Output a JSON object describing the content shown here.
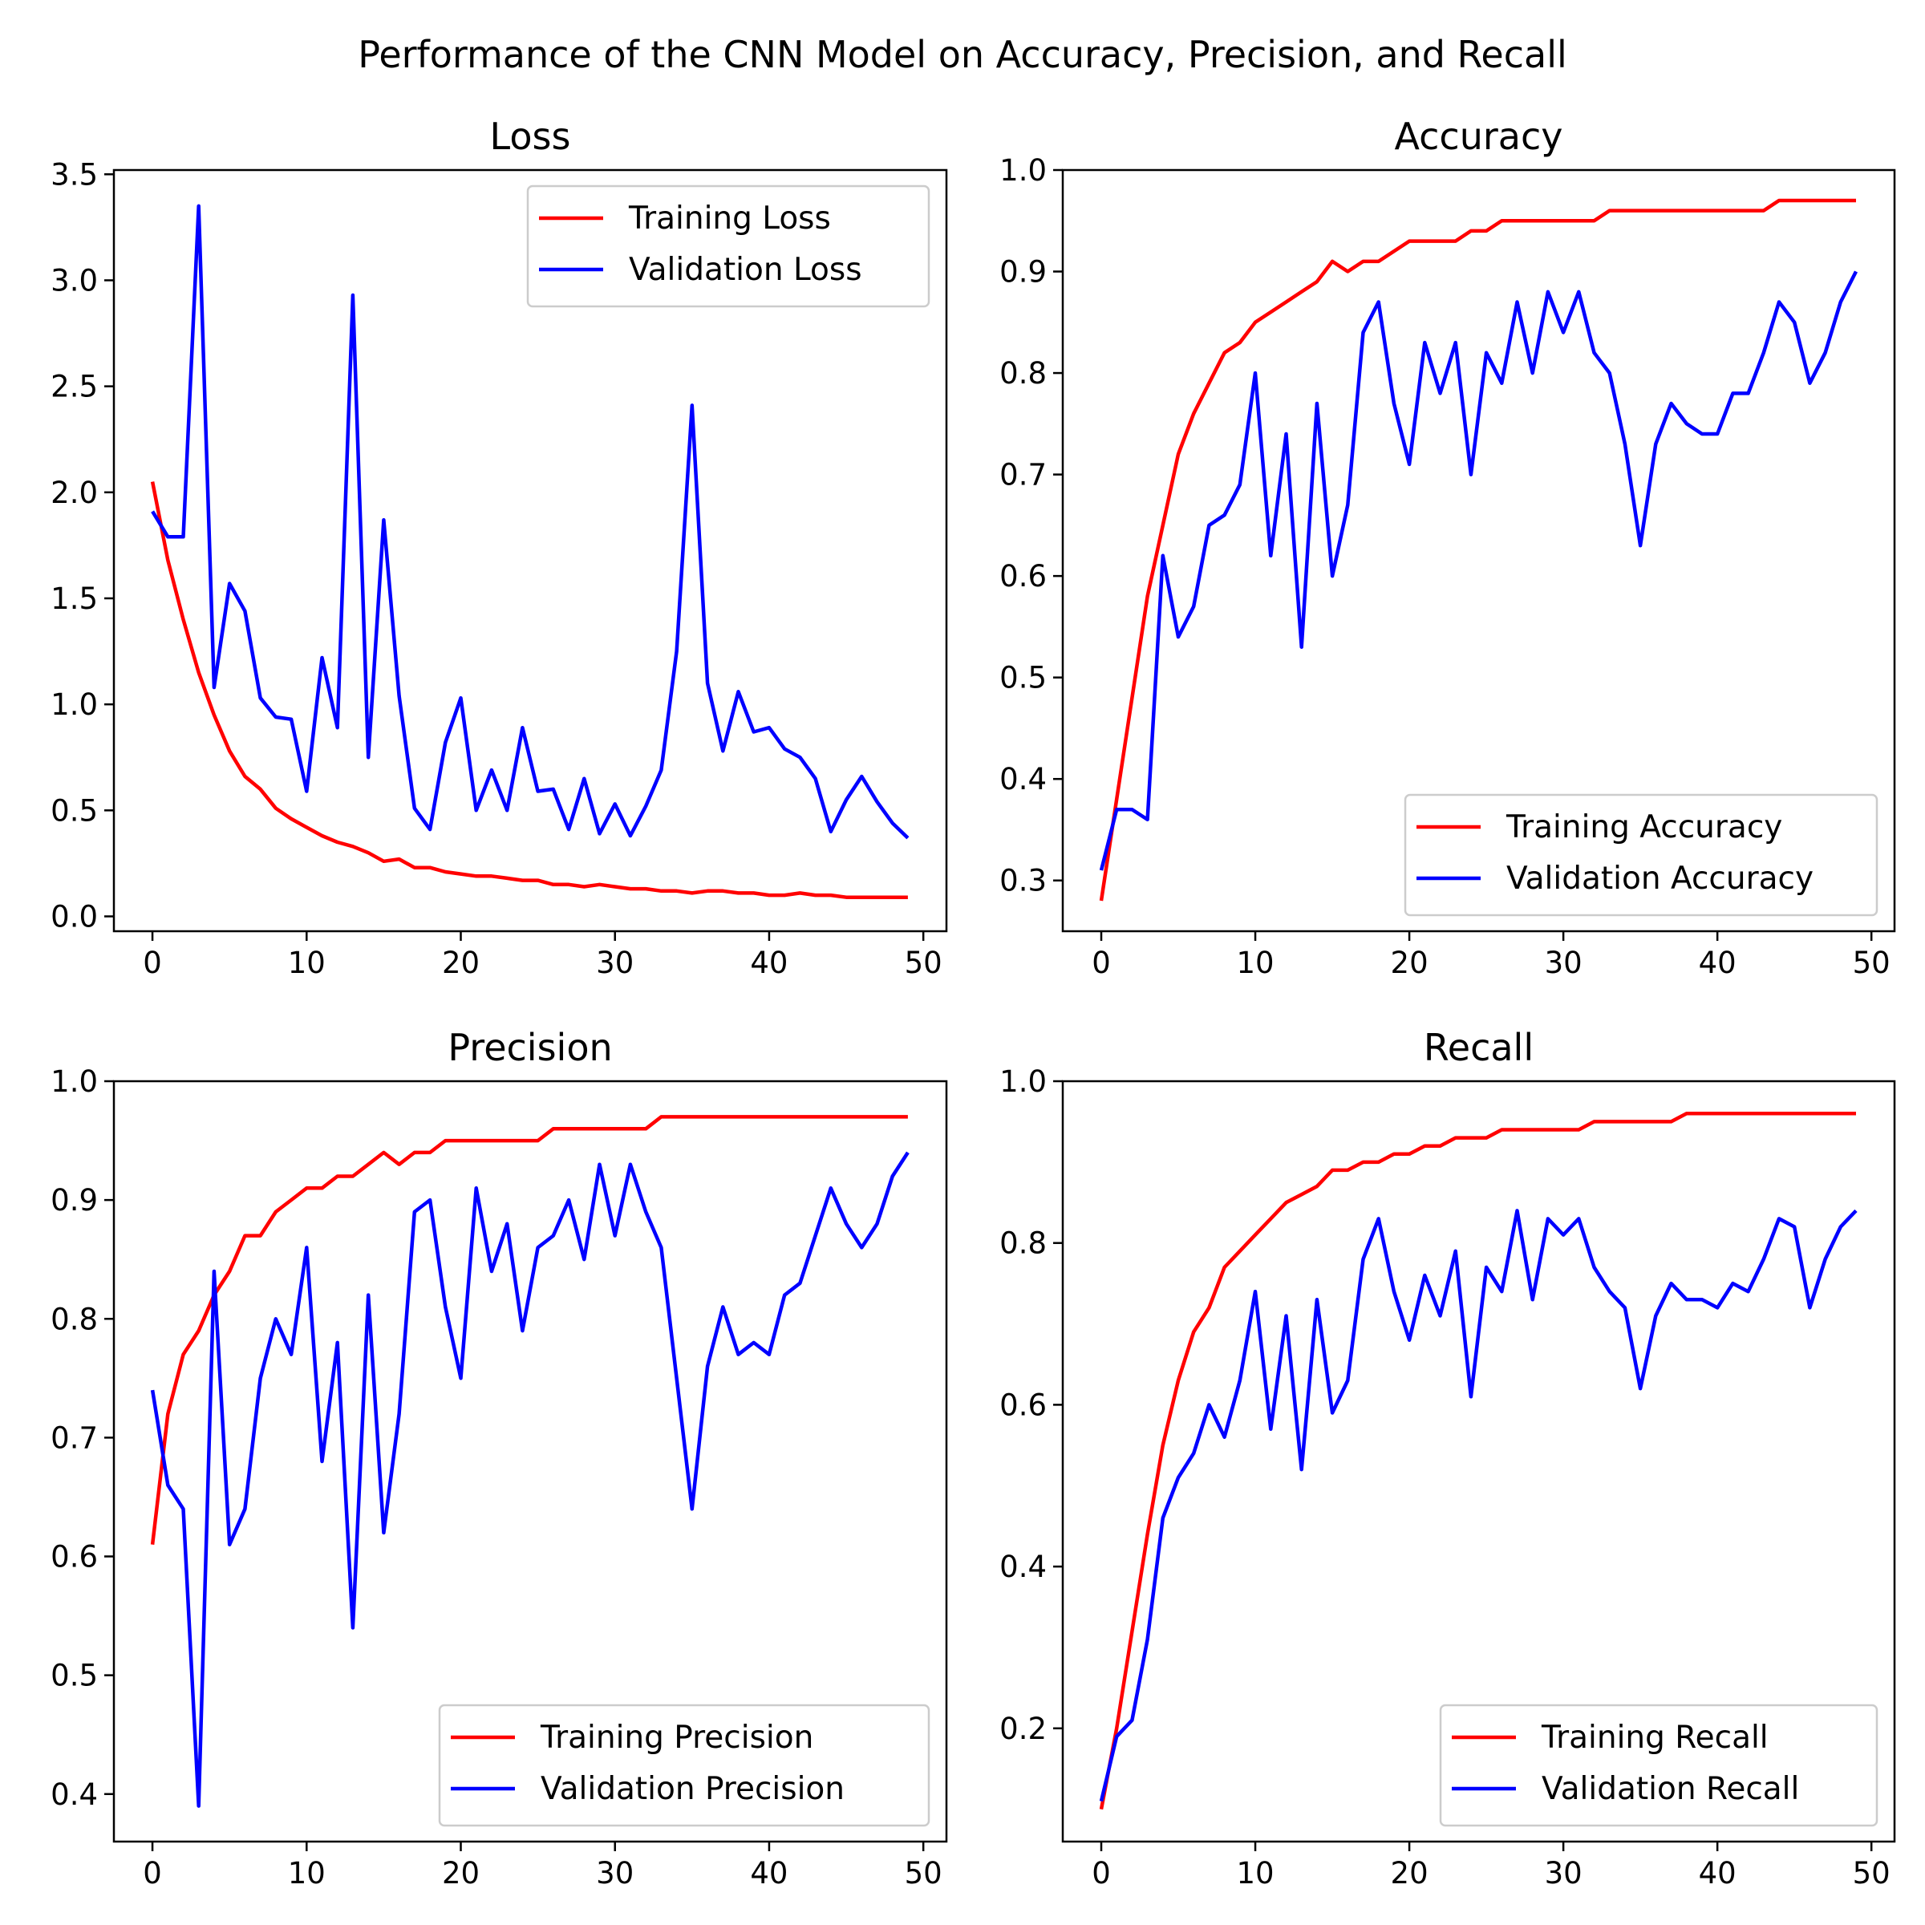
{
  "suptitle": "Performance of the CNN Model on Accuracy, Precision, and Recall",
  "colors": {
    "training": "#ff0000",
    "validation": "#0000ff"
  },
  "chart_data": [
    {
      "type": "line",
      "title": "Loss",
      "xlim": [
        -2.5,
        51.5
      ],
      "ylim": [
        -0.07,
        3.52
      ],
      "xticks": [
        0,
        10,
        20,
        30,
        40,
        50
      ],
      "xtick_labels": [
        "0",
        "10",
        "20",
        "30",
        "40",
        "50"
      ],
      "yticks": [
        0.0,
        0.5,
        1.0,
        1.5,
        2.0,
        2.5,
        3.0,
        3.5
      ],
      "ytick_labels": [
        "0.0",
        "0.5",
        "1.0",
        "1.5",
        "2.0",
        "2.5",
        "3.0",
        "3.5"
      ],
      "legend_loc": "upper right",
      "series": [
        {
          "name": "Training Loss",
          "color": "#ff0000",
          "x": [
            0,
            1,
            2,
            3,
            4,
            5,
            6,
            7,
            8,
            9,
            10,
            11,
            12,
            13,
            14,
            15,
            16,
            17,
            18,
            19,
            20,
            21,
            22,
            23,
            24,
            25,
            26,
            27,
            28,
            29,
            30,
            31,
            32,
            33,
            34,
            35,
            36,
            37,
            38,
            39,
            40,
            41,
            42,
            43,
            44,
            45,
            46,
            47,
            48,
            49
          ],
          "values": [
            2.05,
            1.68,
            1.4,
            1.15,
            0.95,
            0.78,
            0.66,
            0.6,
            0.51,
            0.46,
            0.42,
            0.38,
            0.35,
            0.33,
            0.3,
            0.26,
            0.27,
            0.23,
            0.23,
            0.21,
            0.2,
            0.19,
            0.19,
            0.18,
            0.17,
            0.17,
            0.15,
            0.15,
            0.14,
            0.15,
            0.14,
            0.13,
            0.13,
            0.12,
            0.12,
            0.11,
            0.12,
            0.12,
            0.11,
            0.11,
            0.1,
            0.1,
            0.11,
            0.1,
            0.1,
            0.09,
            0.09,
            0.09,
            0.09,
            0.09
          ]
        },
        {
          "name": "Validation Loss",
          "color": "#0000ff",
          "x": [
            0,
            1,
            2,
            3,
            4,
            5,
            6,
            7,
            8,
            9,
            10,
            11,
            12,
            13,
            14,
            15,
            16,
            17,
            18,
            19,
            20,
            21,
            22,
            23,
            24,
            25,
            26,
            27,
            28,
            29,
            30,
            31,
            32,
            33,
            34,
            35,
            36,
            37,
            38,
            39,
            40,
            41,
            42,
            43,
            44,
            45,
            46,
            47,
            48,
            49
          ],
          "values": [
            1.91,
            1.79,
            1.79,
            3.35,
            1.08,
            1.57,
            1.44,
            1.03,
            0.94,
            0.93,
            0.59,
            1.22,
            0.89,
            2.93,
            0.75,
            1.87,
            1.04,
            0.51,
            0.41,
            0.82,
            1.03,
            0.5,
            0.69,
            0.5,
            0.89,
            0.59,
            0.6,
            0.41,
            0.65,
            0.39,
            0.53,
            0.38,
            0.52,
            0.69,
            1.25,
            2.41,
            1.1,
            0.78,
            1.06,
            0.87,
            0.89,
            0.79,
            0.75,
            0.65,
            0.4,
            0.55,
            0.66,
            0.54,
            0.44,
            0.37
          ]
        }
      ]
    },
    {
      "type": "line",
      "title": "Accuracy",
      "xlim": [
        -2.5,
        51.5
      ],
      "ylim": [
        0.25,
        1.0
      ],
      "xticks": [
        0,
        10,
        20,
        30,
        40,
        50
      ],
      "xtick_labels": [
        "0",
        "10",
        "20",
        "30",
        "40",
        "50"
      ],
      "yticks": [
        0.3,
        0.4,
        0.5,
        0.6,
        0.7,
        0.8,
        0.9,
        1.0
      ],
      "ytick_labels": [
        "0.3",
        "0.4",
        "0.5",
        "0.6",
        "0.7",
        "0.8",
        "0.9",
        "1.0"
      ],
      "legend_loc": "lower right",
      "series": [
        {
          "name": "Training Accuracy",
          "color": "#ff0000",
          "x": [
            0,
            1,
            2,
            3,
            4,
            5,
            6,
            7,
            8,
            9,
            10,
            11,
            12,
            13,
            14,
            15,
            16,
            17,
            18,
            19,
            20,
            21,
            22,
            23,
            24,
            25,
            26,
            27,
            28,
            29,
            30,
            31,
            32,
            33,
            34,
            35,
            36,
            37,
            38,
            39,
            40,
            41,
            42,
            43,
            44,
            45,
            46,
            47,
            48,
            49
          ],
          "values": [
            0.28,
            0.38,
            0.48,
            0.58,
            0.65,
            0.72,
            0.76,
            0.79,
            0.82,
            0.83,
            0.85,
            0.86,
            0.87,
            0.88,
            0.89,
            0.91,
            0.9,
            0.91,
            0.91,
            0.92,
            0.93,
            0.93,
            0.93,
            0.93,
            0.94,
            0.94,
            0.95,
            0.95,
            0.95,
            0.95,
            0.95,
            0.95,
            0.95,
            0.96,
            0.96,
            0.96,
            0.96,
            0.96,
            0.96,
            0.96,
            0.96,
            0.96,
            0.96,
            0.96,
            0.97,
            0.97,
            0.97,
            0.97,
            0.97,
            0.97
          ]
        },
        {
          "name": "Validation Accuracy",
          "color": "#0000ff",
          "x": [
            0,
            1,
            2,
            3,
            4,
            5,
            6,
            7,
            8,
            9,
            10,
            11,
            12,
            13,
            14,
            15,
            16,
            17,
            18,
            19,
            20,
            21,
            22,
            23,
            24,
            25,
            26,
            27,
            28,
            29,
            30,
            31,
            32,
            33,
            34,
            35,
            36,
            37,
            38,
            39,
            40,
            41,
            42,
            43,
            44,
            45,
            46,
            47,
            48,
            49
          ],
          "values": [
            0.31,
            0.37,
            0.37,
            0.36,
            0.62,
            0.54,
            0.57,
            0.65,
            0.66,
            0.69,
            0.8,
            0.62,
            0.74,
            0.53,
            0.77,
            0.6,
            0.67,
            0.84,
            0.87,
            0.77,
            0.71,
            0.83,
            0.78,
            0.83,
            0.7,
            0.82,
            0.79,
            0.87,
            0.8,
            0.88,
            0.84,
            0.88,
            0.82,
            0.8,
            0.73,
            0.63,
            0.73,
            0.77,
            0.75,
            0.74,
            0.74,
            0.78,
            0.78,
            0.82,
            0.87,
            0.85,
            0.79,
            0.82,
            0.87,
            0.9
          ]
        }
      ]
    },
    {
      "type": "line",
      "title": "Precision",
      "xlim": [
        -2.5,
        51.5
      ],
      "ylim": [
        0.36,
        1.0
      ],
      "xticks": [
        0,
        10,
        20,
        30,
        40,
        50
      ],
      "xtick_labels": [
        "0",
        "10",
        "20",
        "30",
        "40",
        "50"
      ],
      "yticks": [
        0.4,
        0.5,
        0.6,
        0.7,
        0.8,
        0.9,
        1.0
      ],
      "ytick_labels": [
        "0.4",
        "0.5",
        "0.6",
        "0.7",
        "0.8",
        "0.9",
        "1.0"
      ],
      "legend_loc": "lower right",
      "series": [
        {
          "name": "Training Precision",
          "color": "#ff0000",
          "x": [
            0,
            1,
            2,
            3,
            4,
            5,
            6,
            7,
            8,
            9,
            10,
            11,
            12,
            13,
            14,
            15,
            16,
            17,
            18,
            19,
            20,
            21,
            22,
            23,
            24,
            25,
            26,
            27,
            28,
            29,
            30,
            31,
            32,
            33,
            34,
            35,
            36,
            37,
            38,
            39,
            40,
            41,
            42,
            43,
            44,
            45,
            46,
            47,
            48,
            49
          ],
          "values": [
            0.61,
            0.72,
            0.77,
            0.79,
            0.82,
            0.84,
            0.87,
            0.87,
            0.89,
            0.9,
            0.91,
            0.91,
            0.92,
            0.92,
            0.93,
            0.94,
            0.93,
            0.94,
            0.94,
            0.95,
            0.95,
            0.95,
            0.95,
            0.95,
            0.95,
            0.95,
            0.96,
            0.96,
            0.96,
            0.96,
            0.96,
            0.96,
            0.96,
            0.97,
            0.97,
            0.97,
            0.97,
            0.97,
            0.97,
            0.97,
            0.97,
            0.97,
            0.97,
            0.97,
            0.97,
            0.97,
            0.97,
            0.97,
            0.97,
            0.97
          ]
        },
        {
          "name": "Validation Precision",
          "color": "#0000ff",
          "x": [
            0,
            1,
            2,
            3,
            4,
            5,
            6,
            7,
            8,
            9,
            10,
            11,
            12,
            13,
            14,
            15,
            16,
            17,
            18,
            19,
            20,
            21,
            22,
            23,
            24,
            25,
            26,
            27,
            28,
            29,
            30,
            31,
            32,
            33,
            34,
            35,
            36,
            37,
            38,
            39,
            40,
            41,
            42,
            43,
            44,
            45,
            46,
            47,
            48,
            49
          ],
          "values": [
            0.74,
            0.66,
            0.64,
            0.39,
            0.84,
            0.61,
            0.64,
            0.75,
            0.8,
            0.77,
            0.86,
            0.68,
            0.78,
            0.54,
            0.82,
            0.62,
            0.72,
            0.89,
            0.9,
            0.81,
            0.75,
            0.91,
            0.84,
            0.88,
            0.79,
            0.86,
            0.87,
            0.9,
            0.85,
            0.93,
            0.87,
            0.93,
            0.89,
            0.86,
            0.75,
            0.64,
            0.76,
            0.81,
            0.77,
            0.78,
            0.77,
            0.82,
            0.83,
            0.87,
            0.91,
            0.88,
            0.86,
            0.88,
            0.92,
            0.94
          ]
        }
      ]
    },
    {
      "type": "line",
      "title": "Recall",
      "xlim": [
        -2.5,
        51.5
      ],
      "ylim": [
        0.06,
        1.0
      ],
      "xticks": [
        0,
        10,
        20,
        30,
        40,
        50
      ],
      "xtick_labels": [
        "0",
        "10",
        "20",
        "30",
        "40",
        "50"
      ],
      "yticks": [
        0.2,
        0.4,
        0.6,
        0.8,
        1.0
      ],
      "ytick_labels": [
        "0.2",
        "0.4",
        "0.6",
        "0.8",
        "1.0"
      ],
      "legend_loc": "lower right",
      "series": [
        {
          "name": "Training Recall",
          "color": "#ff0000",
          "x": [
            0,
            1,
            2,
            3,
            4,
            5,
            6,
            7,
            8,
            9,
            10,
            11,
            12,
            13,
            14,
            15,
            16,
            17,
            18,
            19,
            20,
            21,
            22,
            23,
            24,
            25,
            26,
            27,
            28,
            29,
            30,
            31,
            32,
            33,
            34,
            35,
            36,
            37,
            38,
            39,
            40,
            41,
            42,
            43,
            44,
            45,
            46,
            47,
            48,
            49
          ],
          "values": [
            0.1,
            0.2,
            0.32,
            0.44,
            0.55,
            0.63,
            0.69,
            0.72,
            0.77,
            0.79,
            0.81,
            0.83,
            0.85,
            0.86,
            0.87,
            0.89,
            0.89,
            0.9,
            0.9,
            0.91,
            0.91,
            0.92,
            0.92,
            0.93,
            0.93,
            0.93,
            0.94,
            0.94,
            0.94,
            0.94,
            0.94,
            0.94,
            0.95,
            0.95,
            0.95,
            0.95,
            0.95,
            0.95,
            0.96,
            0.96,
            0.96,
            0.96,
            0.96,
            0.96,
            0.96,
            0.96,
            0.96,
            0.96,
            0.96,
            0.96
          ]
        },
        {
          "name": "Validation Recall",
          "color": "#0000ff",
          "x": [
            0,
            1,
            2,
            3,
            4,
            5,
            6,
            7,
            8,
            9,
            10,
            11,
            12,
            13,
            14,
            15,
            16,
            17,
            18,
            19,
            20,
            21,
            22,
            23,
            24,
            25,
            26,
            27,
            28,
            29,
            30,
            31,
            32,
            33,
            34,
            35,
            36,
            37,
            38,
            39,
            40,
            41,
            42,
            43,
            44,
            45,
            46,
            47,
            48,
            49
          ],
          "values": [
            0.11,
            0.19,
            0.21,
            0.31,
            0.46,
            0.51,
            0.54,
            0.6,
            0.56,
            0.63,
            0.74,
            0.57,
            0.71,
            0.52,
            0.73,
            0.59,
            0.63,
            0.78,
            0.83,
            0.74,
            0.68,
            0.76,
            0.71,
            0.79,
            0.61,
            0.77,
            0.74,
            0.84,
            0.73,
            0.83,
            0.81,
            0.83,
            0.77,
            0.74,
            0.72,
            0.62,
            0.71,
            0.75,
            0.73,
            0.73,
            0.72,
            0.75,
            0.74,
            0.78,
            0.83,
            0.82,
            0.72,
            0.78,
            0.82,
            0.84
          ]
        }
      ]
    }
  ]
}
